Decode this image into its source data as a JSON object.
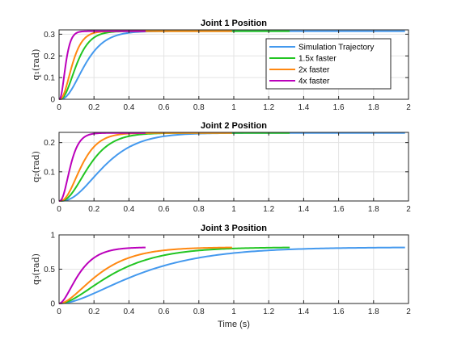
{
  "figure": {
    "xlabel": "Time (s)"
  },
  "legend": {
    "entries": [
      {
        "label": "Simulation Trajectory",
        "color": "#4499ee"
      },
      {
        "label": "1.5x faster",
        "color": "#22c522"
      },
      {
        "label": "2x faster",
        "color": "#ff8811"
      },
      {
        "label": "4x faster",
        "color": "#bb00bb"
      }
    ],
    "placement": "top-right of first subplot"
  },
  "chart_data": [
    {
      "type": "line",
      "title": "Joint 1 Position",
      "ylabel": "q₁(rad)",
      "xlim": [
        0,
        2
      ],
      "ylim": [
        0,
        0.32
      ],
      "xticks": [
        "0",
        "0.2",
        "0.4",
        "0.6",
        "0.8",
        "1",
        "1.2",
        "1.4",
        "1.6",
        "1.8",
        "2"
      ],
      "yticks": [
        "0",
        "0.1",
        "0.2",
        "0.3"
      ],
      "grid": true,
      "legend": true,
      "series": [
        {
          "name": "Simulation Trajectory",
          "color": "#4499ee",
          "shape": "sigmoid",
          "final": 0.314,
          "tend": 1.98,
          "t": [
            0,
            0.05,
            0.1,
            0.15,
            0.2,
            0.25,
            0.3,
            0.35,
            0.4,
            0.5,
            0.6,
            0.8,
            1.0,
            1.5,
            1.98
          ],
          "y": [
            0,
            0.03,
            0.1,
            0.17,
            0.22,
            0.26,
            0.285,
            0.298,
            0.306,
            0.312,
            0.314,
            0.314,
            0.314,
            0.314,
            0.314
          ]
        },
        {
          "name": "1.5x faster",
          "color": "#22c522",
          "shape": "sigmoid",
          "final": 0.314,
          "tend": 1.32,
          "t": [
            0,
            0.1,
            0.2,
            0.3,
            0.4,
            0.6,
            1.32
          ],
          "y": [
            0,
            0.16,
            0.27,
            0.302,
            0.312,
            0.314,
            0.314
          ]
        },
        {
          "name": "2x faster",
          "color": "#ff8811",
          "shape": "sigmoid",
          "final": 0.314,
          "tend": 0.99,
          "t": [
            0,
            0.05,
            0.1,
            0.15,
            0.2,
            0.3,
            0.99
          ],
          "y": [
            0,
            0.08,
            0.2,
            0.27,
            0.3,
            0.312,
            0.314
          ]
        },
        {
          "name": "4x faster",
          "color": "#bb00bb",
          "shape": "sigmoid",
          "final": 0.314,
          "tend": 0.495,
          "t": [
            0,
            0.05,
            0.1,
            0.15,
            0.495
          ],
          "y": [
            0,
            0.2,
            0.3,
            0.312,
            0.314
          ]
        }
      ]
    },
    {
      "type": "line",
      "title": "Joint 2 Position",
      "ylabel": "q₂(rad)",
      "xlim": [
        0,
        2
      ],
      "ylim": [
        0,
        0.235
      ],
      "xticks": [
        "0",
        "0.2",
        "0.4",
        "0.6",
        "0.8",
        "1",
        "1.2",
        "1.4",
        "1.6",
        "1.8",
        "2"
      ],
      "yticks": [
        "0",
        "0.1",
        "0.2"
      ],
      "grid": true,
      "legend": false,
      "series": [
        {
          "name": "Simulation Trajectory",
          "color": "#4499ee",
          "shape": "sigmoid",
          "final": 0.233,
          "tend": 1.98,
          "t": [
            0,
            0.1,
            0.2,
            0.3,
            0.4,
            0.5,
            0.6,
            0.8,
            1.0,
            1.98
          ],
          "y": [
            0,
            0.045,
            0.11,
            0.16,
            0.195,
            0.215,
            0.225,
            0.231,
            0.233,
            0.233
          ]
        },
        {
          "name": "1.5x faster",
          "color": "#22c522",
          "shape": "sigmoid",
          "final": 0.233,
          "tend": 1.32,
          "t": [
            0,
            0.1,
            0.2,
            0.3,
            0.4,
            0.6,
            1.32
          ],
          "y": [
            0,
            0.08,
            0.17,
            0.21,
            0.225,
            0.232,
            0.233
          ]
        },
        {
          "name": "2x faster",
          "color": "#ff8811",
          "shape": "sigmoid",
          "final": 0.233,
          "tend": 0.99,
          "t": [
            0,
            0.1,
            0.2,
            0.3,
            0.5,
            0.99
          ],
          "y": [
            0,
            0.12,
            0.2,
            0.225,
            0.232,
            0.233
          ]
        },
        {
          "name": "4x faster",
          "color": "#bb00bb",
          "shape": "sigmoid",
          "final": 0.233,
          "tend": 0.495,
          "t": [
            0,
            0.05,
            0.1,
            0.15,
            0.495
          ],
          "y": [
            0,
            0.11,
            0.2,
            0.225,
            0.233
          ]
        }
      ]
    },
    {
      "type": "line",
      "title": "Joint 3 Position",
      "ylabel": "q₃(rad)",
      "xlim": [
        0,
        2
      ],
      "ylim": [
        0,
        1
      ],
      "xticks": [
        "0",
        "0.2",
        "0.4",
        "0.6",
        "0.8",
        "1",
        "1.2",
        "1.4",
        "1.6",
        "1.8",
        "2"
      ],
      "yticks": [
        "0",
        "0.5",
        "1"
      ],
      "grid": true,
      "legend": false,
      "series": [
        {
          "name": "Simulation Trajectory",
          "color": "#4499ee",
          "shape": "ramp",
          "final": 0.82,
          "tend": 1.98,
          "t": [
            0,
            0.2,
            0.4,
            0.6,
            0.8,
            1.0,
            1.2,
            1.4,
            1.6,
            1.8,
            1.98
          ],
          "y": [
            0,
            0.18,
            0.4,
            0.55,
            0.65,
            0.72,
            0.76,
            0.785,
            0.8,
            0.81,
            0.815
          ]
        },
        {
          "name": "1.5x faster",
          "color": "#22c522",
          "shape": "ramp",
          "final": 0.82,
          "tend": 1.32,
          "t": [
            0,
            0.2,
            0.4,
            0.6,
            0.8,
            1.0,
            1.32
          ],
          "y": [
            0,
            0.27,
            0.55,
            0.68,
            0.75,
            0.79,
            0.815
          ]
        },
        {
          "name": "2x faster",
          "color": "#ff8811",
          "shape": "ramp",
          "final": 0.82,
          "tend": 0.99,
          "t": [
            0,
            0.2,
            0.4,
            0.6,
            0.8,
            0.99
          ],
          "y": [
            0,
            0.37,
            0.65,
            0.76,
            0.8,
            0.815
          ]
        },
        {
          "name": "4x faster",
          "color": "#bb00bb",
          "shape": "ramp",
          "final": 0.82,
          "tend": 0.495,
          "t": [
            0,
            0.1,
            0.2,
            0.3,
            0.4,
            0.495
          ],
          "y": [
            0,
            0.33,
            0.62,
            0.74,
            0.8,
            0.815
          ]
        }
      ]
    }
  ]
}
